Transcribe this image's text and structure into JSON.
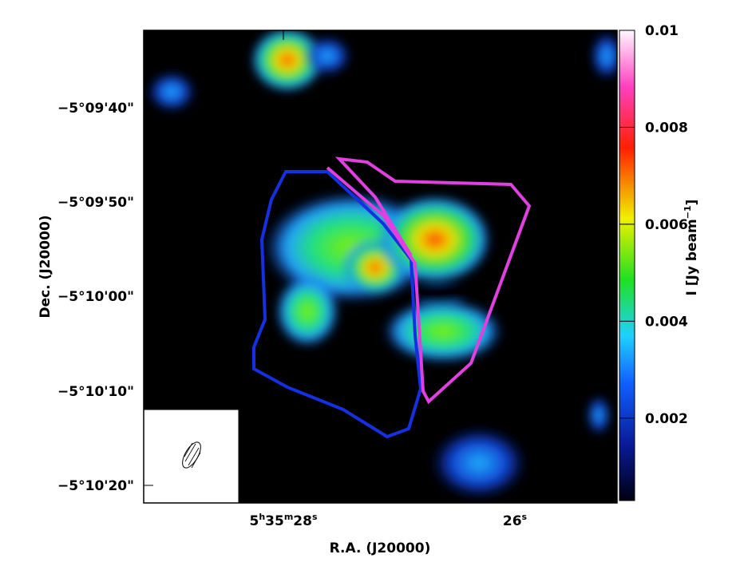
{
  "axes": {
    "xlabel": "R.A. (J20000)",
    "ylabel": "Dec. (J20000)",
    "xticks": [
      [
        "5",
        "h",
        "35",
        "m",
        "28",
        "s"
      ],
      [
        "26",
        "s"
      ]
    ],
    "yticks": [
      "−5°09'40\"",
      "−5°09'50\"",
      "−5°10'00\"",
      "−5°10'10\"",
      "−5°10'20\""
    ]
  },
  "colorbar": {
    "label": "I [Jy beam",
    "label_sup": "−1",
    "label_end": "]",
    "clim": [
      0.0003,
      0.01
    ],
    "ticks": [
      0.002,
      0.004,
      0.006,
      0.008,
      0.01
    ]
  }
}
